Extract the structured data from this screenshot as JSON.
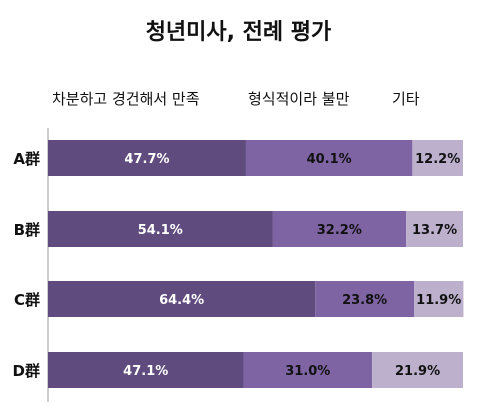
{
  "chart_data": {
    "type": "bar",
    "stacked": true,
    "orientation": "horizontal",
    "percent": true,
    "title": "청년미사, 전례 평가",
    "categories": [
      "A群",
      "B群",
      "C群",
      "D群"
    ],
    "series": [
      {
        "name": "차분하고 경건해서 만족",
        "values": [
          47.7,
          54.1,
          64.4,
          47.1
        ],
        "labels": [
          "47.7%",
          "54.1%",
          "64.4%",
          "47.1%"
        ],
        "color": "#5f4b7e"
      },
      {
        "name": "형식적이라 불만",
        "values": [
          40.1,
          32.2,
          23.8,
          31.0
        ],
        "labels": [
          "40.1%",
          "32.2%",
          "23.8%",
          "31.0%"
        ],
        "color": "#7f64a3"
      },
      {
        "name": "기타",
        "values": [
          12.2,
          13.7,
          11.9,
          21.9
        ],
        "labels": [
          "12.2%",
          "13.7%",
          "11.9%",
          "21.9%"
        ],
        "color": "#bcb0cd"
      }
    ],
    "xlim": [
      0,
      100
    ],
    "legend": "top",
    "grid": false
  }
}
